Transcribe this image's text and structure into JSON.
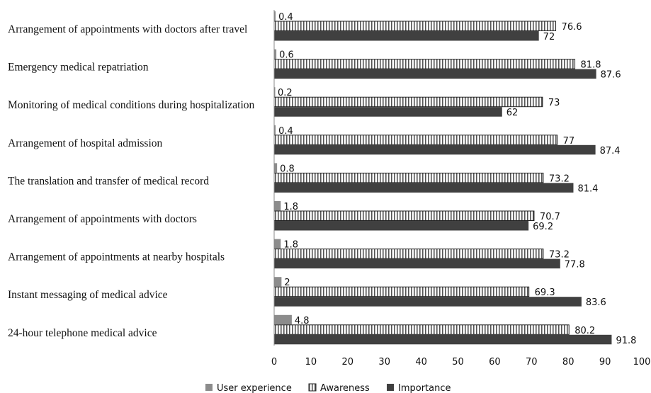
{
  "chart_data": {
    "type": "bar",
    "orientation": "horizontal",
    "title": "",
    "xlabel": "",
    "ylabel": "",
    "xlim": [
      0,
      100
    ],
    "xticks": [
      0,
      10,
      20,
      30,
      40,
      50,
      60,
      70,
      80,
      90,
      100
    ],
    "grid": false,
    "legend_position": "bottom",
    "categories": [
      "Arrangement of appointments with doctors after travel",
      "Emergency medical repatriation",
      "Monitoring of medical conditions during hospitalization",
      "Arrangement of hospital admission",
      "The translation and transfer of medical record",
      "Arrangement of appointments with doctors",
      "Arrangement of appointments at nearby hospitals",
      "Instant messaging of medical advice",
      "24-hour telephone medical advice"
    ],
    "series": [
      {
        "name": "User experience",
        "color": "#8c8c8c",
        "pattern": "solid",
        "values": [
          0.4,
          0.6,
          0.2,
          0.4,
          0.8,
          1.8,
          1.8,
          2,
          4.8
        ]
      },
      {
        "name": "Awareness",
        "color": "#ffffff",
        "pattern": "vertical-stripes",
        "values": [
          76.6,
          81.8,
          73,
          77,
          73.2,
          70.7,
          73.2,
          69.3,
          80.2
        ]
      },
      {
        "name": "Importance",
        "color": "#404040",
        "pattern": "solid",
        "values": [
          72,
          87.6,
          62,
          87.4,
          81.4,
          69.2,
          77.8,
          83.6,
          91.8
        ]
      }
    ],
    "value_labels": [
      [
        "0.4",
        "76.6",
        "72"
      ],
      [
        "0.6",
        "81.8",
        "87.6"
      ],
      [
        "0.2",
        "73",
        "62"
      ],
      [
        "0.4",
        "77",
        "87.4"
      ],
      [
        "0.8",
        "73.2",
        "81.4"
      ],
      [
        "1.8",
        "70.7",
        "69.2"
      ],
      [
        "1.8",
        "73.2",
        "77.8"
      ],
      [
        "2",
        "69.3",
        "83.6"
      ],
      [
        "4.8",
        "80.2",
        "91.8"
      ]
    ]
  }
}
